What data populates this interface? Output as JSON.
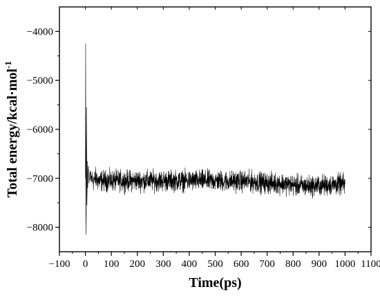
{
  "chart_data": {
    "type": "line",
    "title": "",
    "xlabel": "Time(ps)",
    "ylabel": "Total energy/kcal·mol",
    "ylabel_superscript": "-1",
    "xlim": [
      -100,
      1100
    ],
    "ylim": [
      -8500,
      -3500
    ],
    "xticks": [
      -100,
      0,
      100,
      200,
      300,
      400,
      500,
      600,
      700,
      800,
      900,
      1000,
      1100
    ],
    "yticks": [
      -8000,
      -7000,
      -6000,
      -5000,
      -4000
    ],
    "xtick_labels": [
      "−100",
      "0",
      "100",
      "200",
      "300",
      "400",
      "500",
      "600",
      "700",
      "800",
      "900",
      "1000",
      "1100"
    ],
    "ytick_labels": [
      "−8000",
      "−7000",
      "−6000",
      "−5000",
      "−4000"
    ],
    "grid": false,
    "legend": "none",
    "line_color": "#000000",
    "series": [
      {
        "name": "",
        "x": [
          0,
          1,
          2,
          3,
          4,
          5,
          6,
          7,
          8,
          9,
          10,
          12,
          14,
          16,
          18,
          20,
          25,
          30,
          40,
          50,
          60,
          80,
          100,
          120,
          140,
          160,
          180,
          200,
          250,
          300,
          350,
          400,
          450,
          500,
          550,
          600,
          650,
          700,
          750,
          800,
          850,
          900,
          950,
          1000
        ],
        "y": [
          -7000,
          -4250,
          -7750,
          -8150,
          -5550,
          -6400,
          -7550,
          -7250,
          -6650,
          -7200,
          -6900,
          -6750,
          -7100,
          -7000,
          -6850,
          -7050,
          -7000,
          -7050,
          -7000,
          -7050,
          -7050,
          -7050,
          -7050,
          -7050,
          -7050,
          -7050,
          -7050,
          -7050,
          -7050,
          -7050,
          -7050,
          -7050,
          -7050,
          -7050,
          -7060,
          -7060,
          -7070,
          -7100,
          -7100,
          -7140,
          -7160,
          -7150,
          -7130,
          -7120
        ],
        "noise_amplitude": 140
      }
    ]
  }
}
